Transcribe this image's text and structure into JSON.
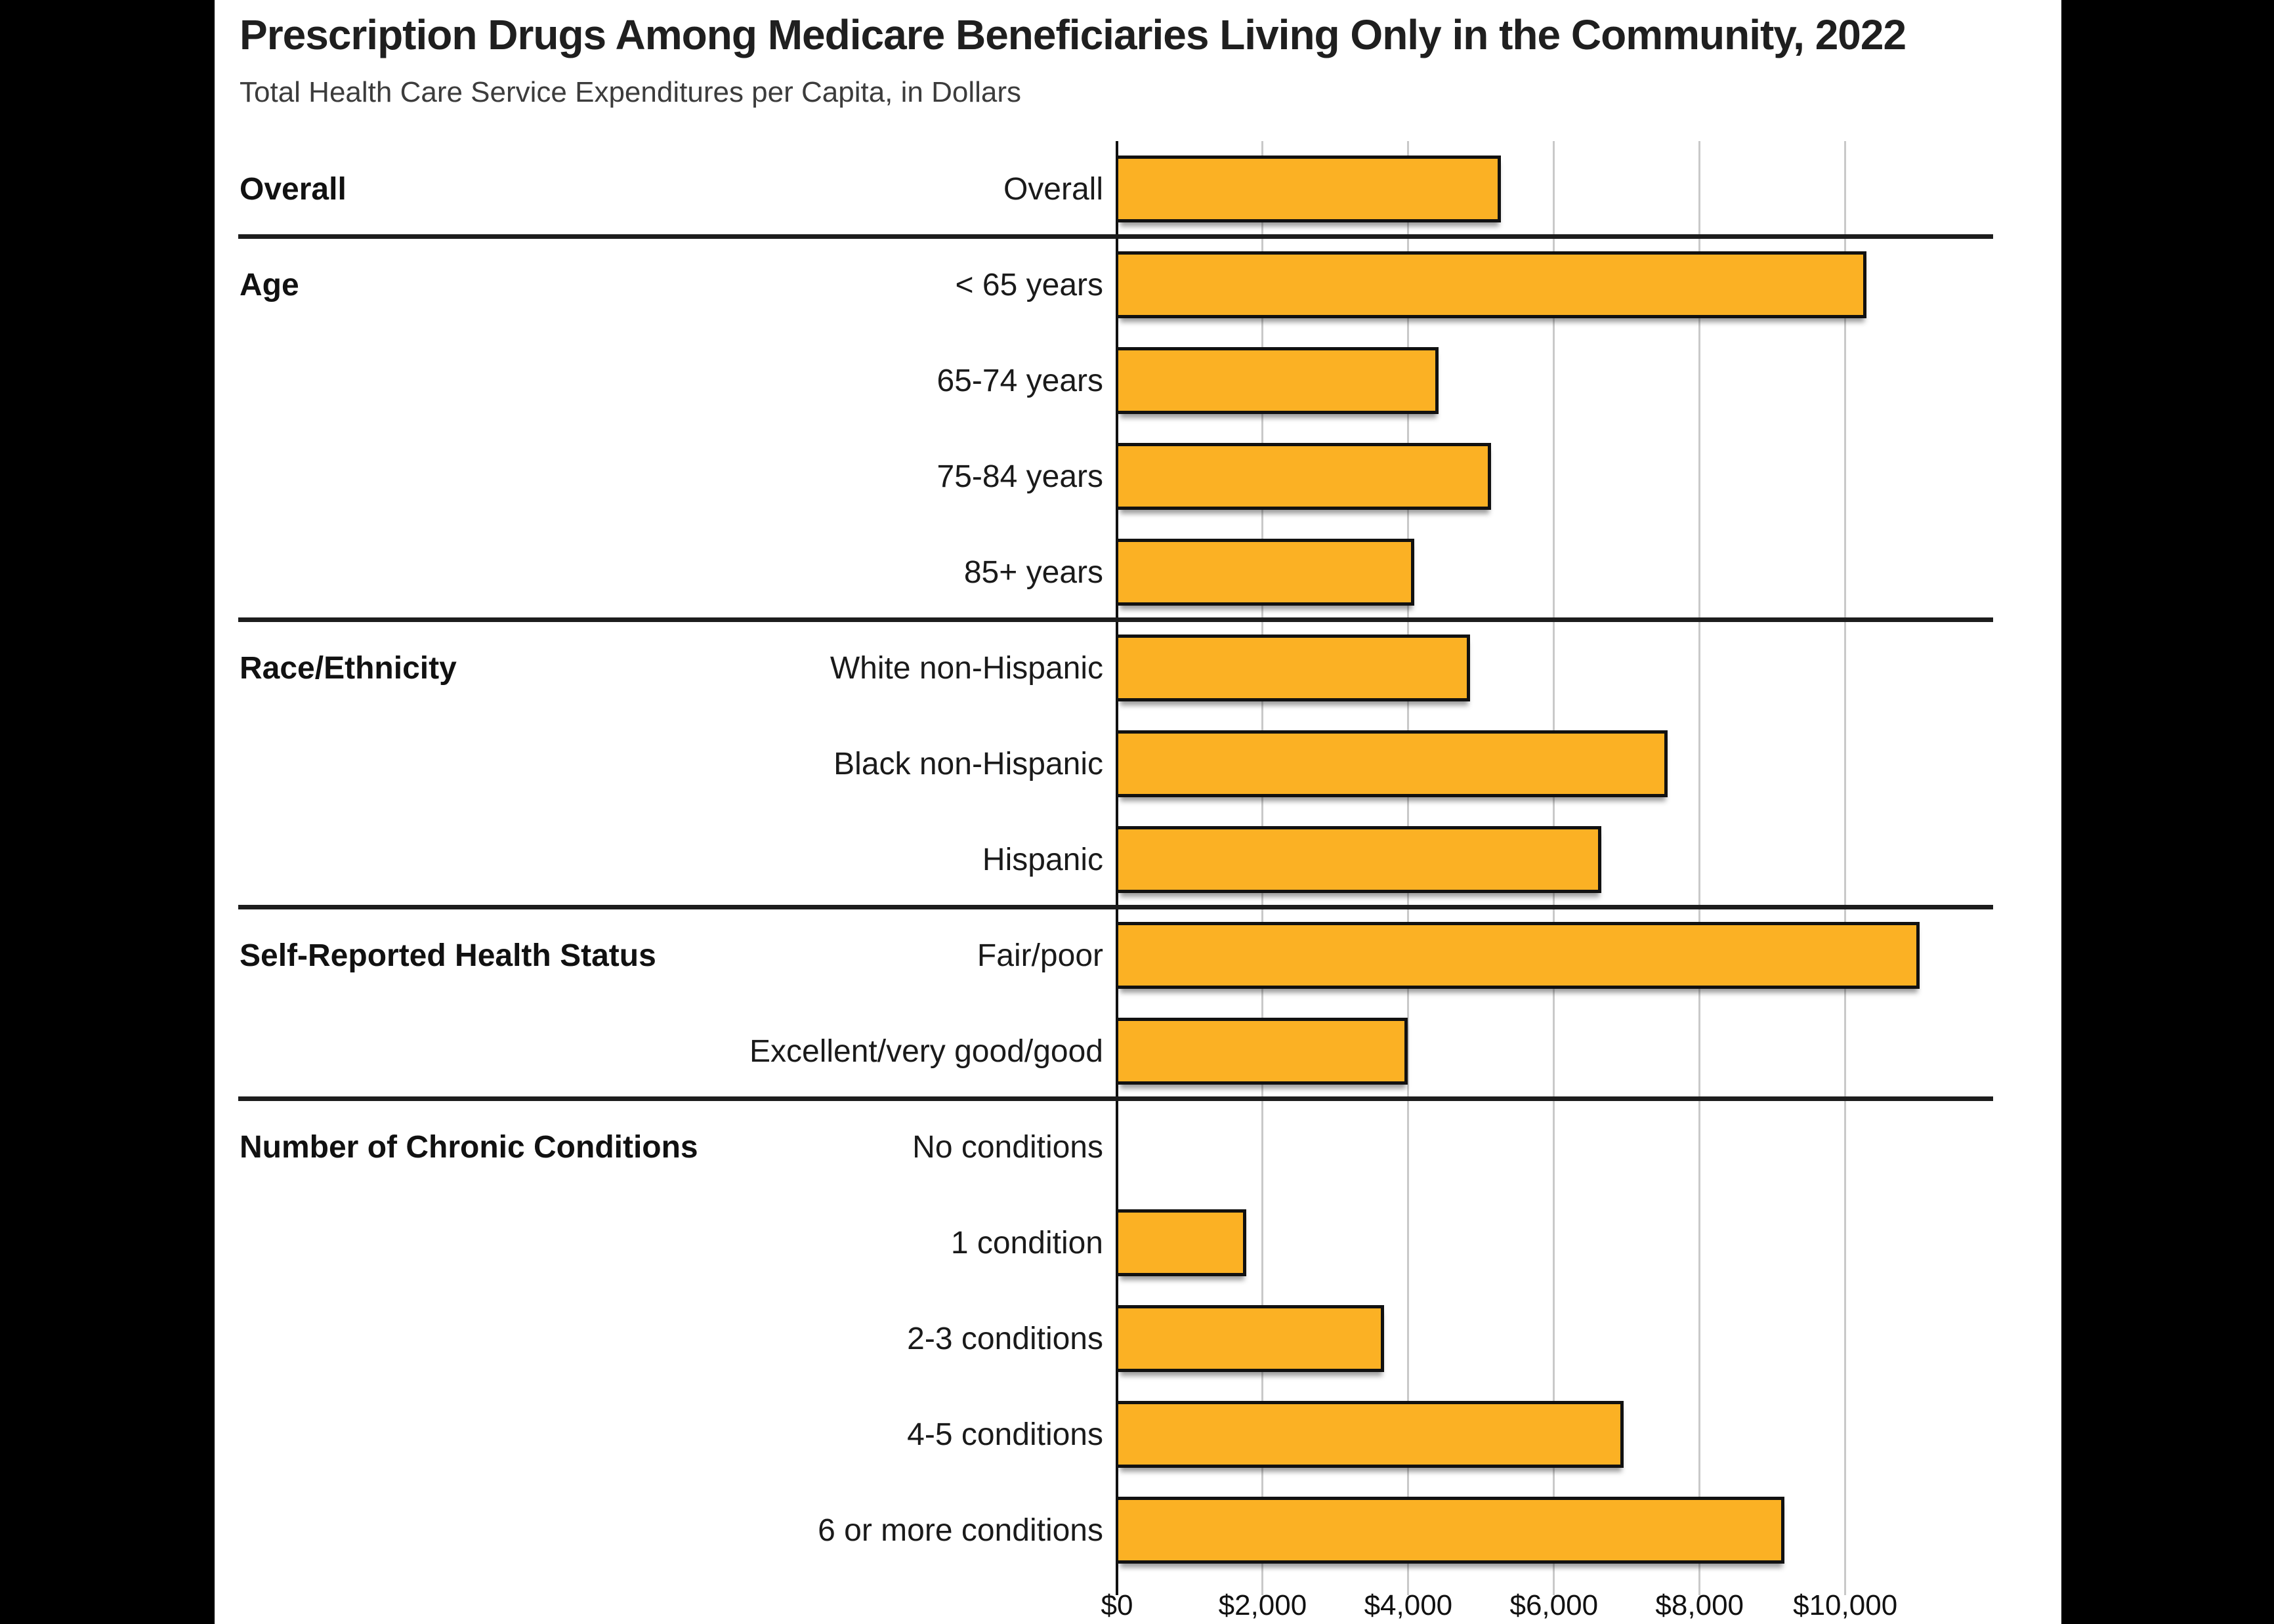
{
  "title": "Prescription Drugs Among Medicare Beneficiaries Living Only in the Community, 2022",
  "subtitle": "Total Health Care Service Expenditures per Capita, in Dollars",
  "chart_data": {
    "type": "bar",
    "orientation": "horizontal",
    "title": "Prescription Drugs Among Medicare Beneficiaries Living Only in the Community, 2022",
    "subtitle": "Total Health Care Service Expenditures per Capita, in Dollars",
    "unit": "dollars per capita",
    "xlabel": "",
    "ylabel": "",
    "xlim": [
      0,
      12950
    ],
    "grid": true,
    "x_ticks": [
      {
        "value": 0,
        "label": "$0"
      },
      {
        "value": 2000,
        "label": "$2,000"
      },
      {
        "value": 4000,
        "label": "$4,000"
      },
      {
        "value": 6000,
        "label": "$6,000"
      },
      {
        "value": 8000,
        "label": "$8,000"
      },
      {
        "value": 10000,
        "label": "$10,000"
      }
    ],
    "groups": [
      {
        "group": "Overall",
        "rows": [
          {
            "label": "Overall",
            "value": 5250
          }
        ]
      },
      {
        "group": "Age",
        "rows": [
          {
            "label": "< 65 years",
            "value": 10270
          },
          {
            "label": "65-74 years",
            "value": 4400
          },
          {
            "label": "75-84 years",
            "value": 5120
          },
          {
            "label": "85+ years",
            "value": 4060
          }
        ]
      },
      {
        "group": "Race/Ethnicity",
        "rows": [
          {
            "label": "White non-Hispanic",
            "value": 4830
          },
          {
            "label": "Black non-Hispanic",
            "value": 7540
          },
          {
            "label": "Hispanic",
            "value": 6630
          }
        ]
      },
      {
        "group": "Self-Reported Health Status",
        "rows": [
          {
            "label": "Fair/poor",
            "value": 11000
          },
          {
            "label": "Excellent/very good/good",
            "value": 3970
          }
        ]
      },
      {
        "group": "Number of Chronic Conditions",
        "rows": [
          {
            "label": "No conditions",
            "value": 0
          },
          {
            "label": "1 condition",
            "value": 1760
          },
          {
            "label": "2-3 conditions",
            "value": 3650
          },
          {
            "label": "4-5 conditions",
            "value": 6940
          },
          {
            "label": "6 or more conditions",
            "value": 9150
          }
        ]
      }
    ]
  },
  "colors": {
    "page_background": "#000000",
    "card_background": "#ffffff",
    "bar_fill": "#FBB124",
    "bar_border": "#111111",
    "gridline": "#c9c9c9",
    "axis_line": "#111111",
    "group_separator": "#1d1d1d",
    "title_text": "#1f1f1f",
    "subtitle_text": "#3c3c3c",
    "label_text": "#1a1a1a"
  }
}
